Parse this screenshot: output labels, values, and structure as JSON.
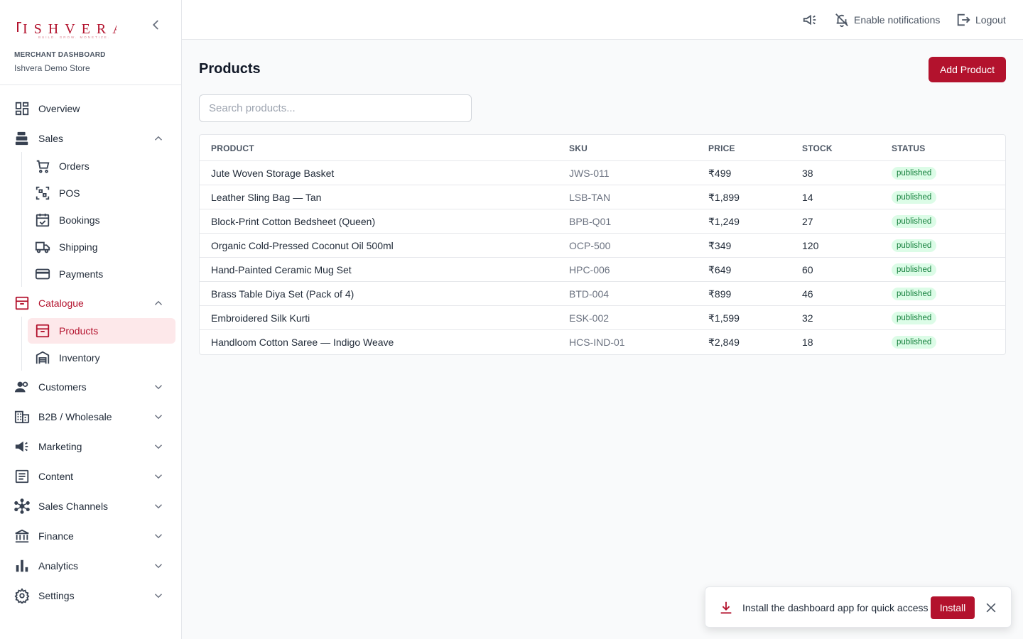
{
  "brand": {
    "logo_text": "ISHVERA",
    "tagline": "BUILD. GROW. MONETIZE.",
    "subtitle": "MERCHANT DASHBOARD",
    "store": "Ishvera Demo Store",
    "accent": "#b3122d"
  },
  "sidebar": {
    "overview": "Overview",
    "sales": "Sales",
    "sales_items": [
      "Orders",
      "POS",
      "Bookings",
      "Shipping",
      "Payments"
    ],
    "catalogue": "Catalogue",
    "catalogue_items": [
      "Products",
      "Inventory"
    ],
    "customers": "Customers",
    "b2b": "B2B / Wholesale",
    "marketing": "Marketing",
    "content": "Content",
    "sales_channels": "Sales Channels",
    "finance": "Finance",
    "analytics": "Analytics",
    "settings": "Settings"
  },
  "topbar": {
    "notifications": "Enable notifications",
    "logout": "Logout"
  },
  "page": {
    "title": "Products",
    "add_button": "Add Product",
    "search_placeholder": "Search products..."
  },
  "table": {
    "headers": [
      "PRODUCT",
      "SKU",
      "PRICE",
      "STOCK",
      "STATUS"
    ],
    "rows": [
      {
        "product": "Jute Woven Storage Basket",
        "sku": "JWS-011",
        "price": "₹499",
        "stock": "38",
        "status": "published"
      },
      {
        "product": "Leather Sling Bag — Tan",
        "sku": "LSB-TAN",
        "price": "₹1,899",
        "stock": "14",
        "status": "published"
      },
      {
        "product": "Block-Print Cotton Bedsheet (Queen)",
        "sku": "BPB-Q01",
        "price": "₹1,249",
        "stock": "27",
        "status": "published"
      },
      {
        "product": "Organic Cold-Pressed Coconut Oil 500ml",
        "sku": "OCP-500",
        "price": "₹349",
        "stock": "120",
        "status": "published"
      },
      {
        "product": "Hand-Painted Ceramic Mug Set",
        "sku": "HPC-006",
        "price": "₹649",
        "stock": "60",
        "status": "published"
      },
      {
        "product": "Brass Table Diya Set (Pack of 4)",
        "sku": "BTD-004",
        "price": "₹899",
        "stock": "46",
        "status": "published"
      },
      {
        "product": "Embroidered Silk Kurti",
        "sku": "ESK-002",
        "price": "₹1,599",
        "stock": "32",
        "status": "published"
      },
      {
        "product": "Handloom Cotton Saree — Indigo Weave",
        "sku": "HCS-IND-01",
        "price": "₹2,849",
        "stock": "18",
        "status": "published"
      }
    ]
  },
  "toast": {
    "message": "Install the dashboard app for quick access",
    "install": "Install"
  }
}
